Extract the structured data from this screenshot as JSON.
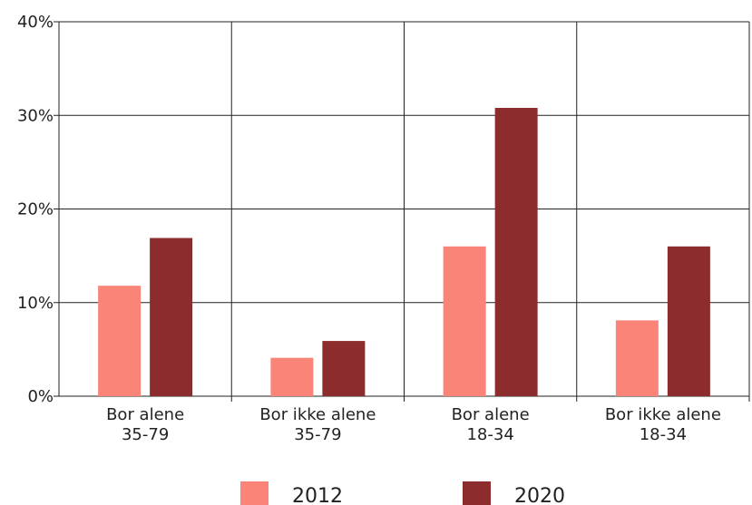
{
  "chart_data": {
    "type": "bar",
    "categories": [
      "Bor alene\n35-79",
      "Bor ikke alene\n35-79",
      "Bor alene\n18-34",
      "Bor ikke alene\n18-34"
    ],
    "series": [
      {
        "name": "2012",
        "color": "#fa8478",
        "values": [
          11.8,
          4.1,
          16,
          8.1
        ]
      },
      {
        "name": "2020",
        "color": "#8c2c2c",
        "values": [
          16.9,
          5.9,
          30.8,
          16
        ]
      }
    ],
    "ylim": [
      0,
      40
    ],
    "yticks": [
      {
        "value": 0,
        "label": "0%"
      },
      {
        "value": 10,
        "label": "10%"
      },
      {
        "value": 20,
        "label": "20%"
      },
      {
        "value": 30,
        "label": "30%"
      },
      {
        "value": 40,
        "label": "40%"
      }
    ],
    "grid": true
  }
}
